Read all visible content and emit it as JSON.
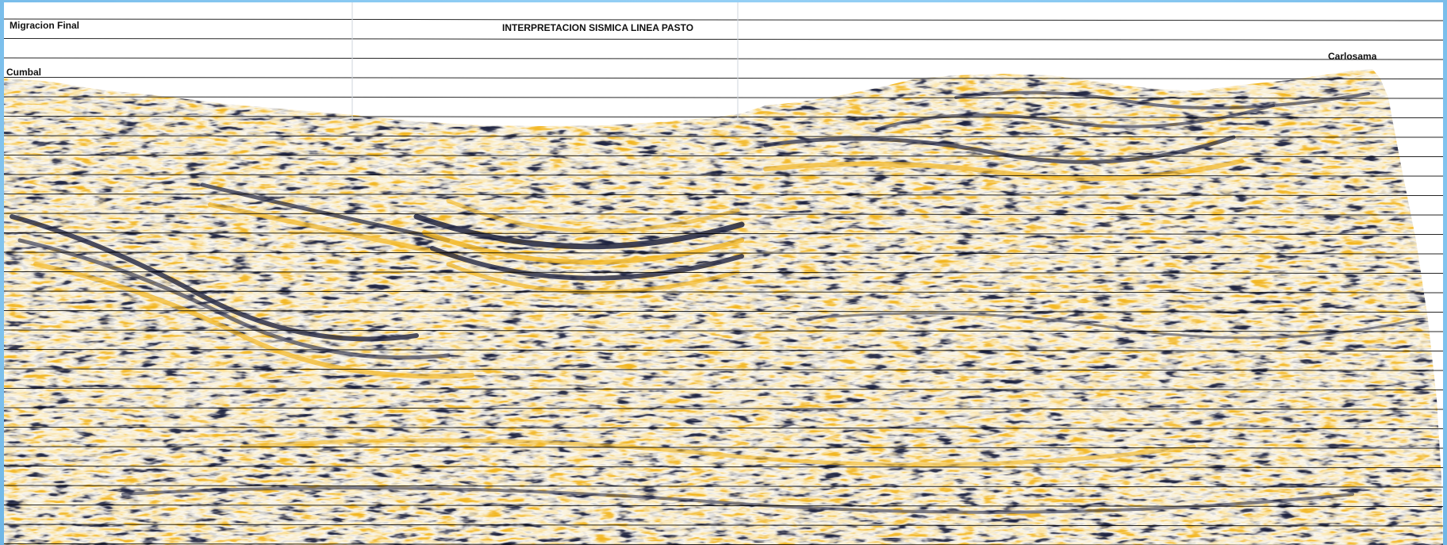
{
  "figure": {
    "title": "INTERPRETACION SISMICA LINEA PASTO",
    "section_label": "Migracion Final",
    "left_location": "Cumbal",
    "right_location": "Carlosama"
  },
  "colors": {
    "frame": "#7dc1ee",
    "paper": "#ffffff",
    "positive_amplitude": "#f2b51f",
    "negative_amplitude": "#1f2340",
    "grid_line": "#000000"
  }
}
